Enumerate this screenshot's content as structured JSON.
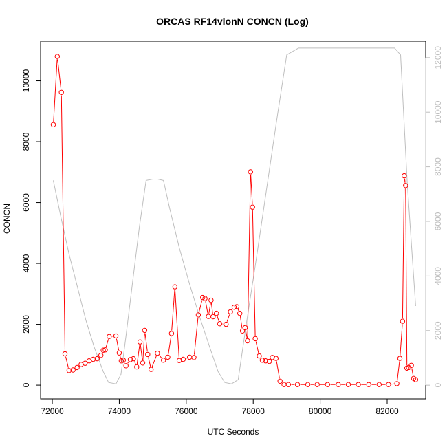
{
  "chart_data": {
    "type": "line",
    "title": "ORCAS RF14vlonN CONCN (Log)",
    "xlabel": "UTC Seconds",
    "ylabel": "CONCN",
    "xlim": [
      71650,
      83150
    ],
    "ylim": [
      -450,
      11300
    ],
    "y2lim": [
      -500,
      12600
    ],
    "x_ticks": [
      72000,
      74000,
      76000,
      78000,
      80000,
      82000
    ],
    "y_ticks": [
      0,
      2000,
      4000,
      6000,
      8000,
      10000
    ],
    "y2_ticks": [
      0,
      2000,
      4000,
      6000,
      8000,
      10000,
      12000
    ],
    "colors": {
      "primary": "#ff0000",
      "secondary": "#bebebe",
      "axis": "#000000"
    },
    "series": [
      {
        "axis": "left",
        "style": "line-points",
        "x": [
          72030,
          72150,
          72270,
          72380,
          72500,
          72620,
          72740,
          72860,
          72980,
          73100,
          73220,
          73340,
          73450,
          73520,
          73580,
          73700,
          73900,
          74000,
          74060,
          74120,
          74200,
          74330,
          74420,
          74520,
          74620,
          74700,
          74760,
          74850,
          74950,
          75140,
          75320,
          75450,
          75560,
          75660,
          75790,
          75910,
          76100,
          76230,
          76360,
          76490,
          76560,
          76660,
          76740,
          76800,
          76900,
          77000,
          77190,
          77320,
          77430,
          77510,
          77600,
          77680,
          77760,
          77830,
          77920,
          77980,
          78060,
          78180,
          78270,
          78370,
          78480,
          78570,
          78680,
          78800,
          78920,
          79050,
          79320,
          79630,
          79910,
          80220,
          80540,
          80840,
          81140,
          81450,
          81760,
          82040,
          82290,
          82380,
          82460,
          82510,
          82550,
          82590,
          82640,
          82720,
          82790,
          82850
        ],
        "y": [
          8560,
          10800,
          9620,
          1030,
          480,
          500,
          580,
          680,
          720,
          800,
          850,
          870,
          980,
          1150,
          1160,
          1600,
          1620,
          1060,
          800,
          820,
          640,
          840,
          870,
          600,
          1420,
          730,
          1800,
          1010,
          520,
          1050,
          820,
          920,
          1700,
          3230,
          810,
          850,
          920,
          910,
          2310,
          2880,
          2850,
          2260,
          2790,
          2250,
          2360,
          2020,
          2000,
          2410,
          2560,
          2580,
          2360,
          1780,
          1890,
          1460,
          7010,
          5850,
          1530,
          960,
          820,
          800,
          780,
          910,
          880,
          130,
          20,
          20,
          20,
          20,
          20,
          20,
          20,
          20,
          20,
          20,
          20,
          20,
          50,
          880,
          2100,
          6880,
          6560,
          560,
          580,
          650,
          220,
          180
        ]
      },
      {
        "axis": "right",
        "style": "line",
        "x": [
          72030,
          72250,
          72500,
          72750,
          73000,
          73250,
          73520,
          73680,
          73900,
          74050,
          74200,
          74400,
          74600,
          74800,
          75000,
          75150,
          75320,
          75500,
          75800,
          76100,
          76400,
          76700,
          76950,
          77150,
          77350,
          77550,
          77800,
          78100,
          78400,
          78700,
          79000,
          79350,
          80000,
          81000,
          82000,
          82220,
          82400,
          82600,
          82850
        ],
        "y": [
          7500,
          6200,
          4800,
          3600,
          2400,
          1400,
          500,
          100,
          50,
          400,
          1800,
          3800,
          5800,
          7500,
          7550,
          7550,
          7500,
          6500,
          5000,
          3700,
          2500,
          1400,
          500,
          100,
          50,
          200,
          2300,
          4700,
          7200,
          9700,
          12100,
          12350,
          12350,
          12350,
          12350,
          12350,
          12100,
          7400,
          2900
        ]
      }
    ]
  }
}
